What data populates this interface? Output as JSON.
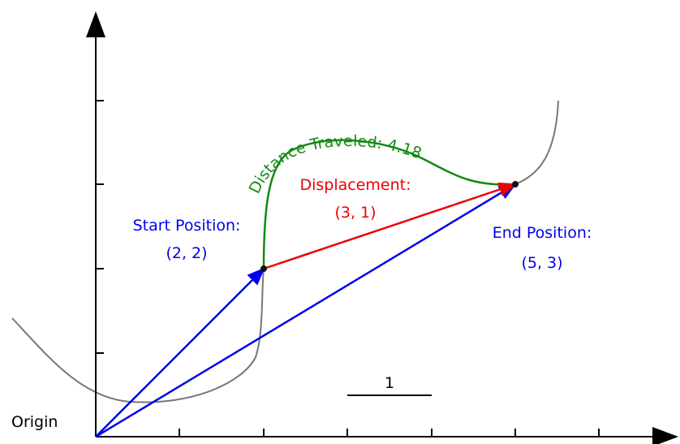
{
  "start_label": "Start Position:",
  "start_coords": "(2, 2)",
  "displacement_label": "Displacement:",
  "displacement_coords": "(3, 1)",
  "end_label": "End Position:",
  "end_coords": "(5, 3)",
  "distance_label": "Distance Traveled: 4.18",
  "origin_label": "Origin",
  "scale_label": "1"
}
